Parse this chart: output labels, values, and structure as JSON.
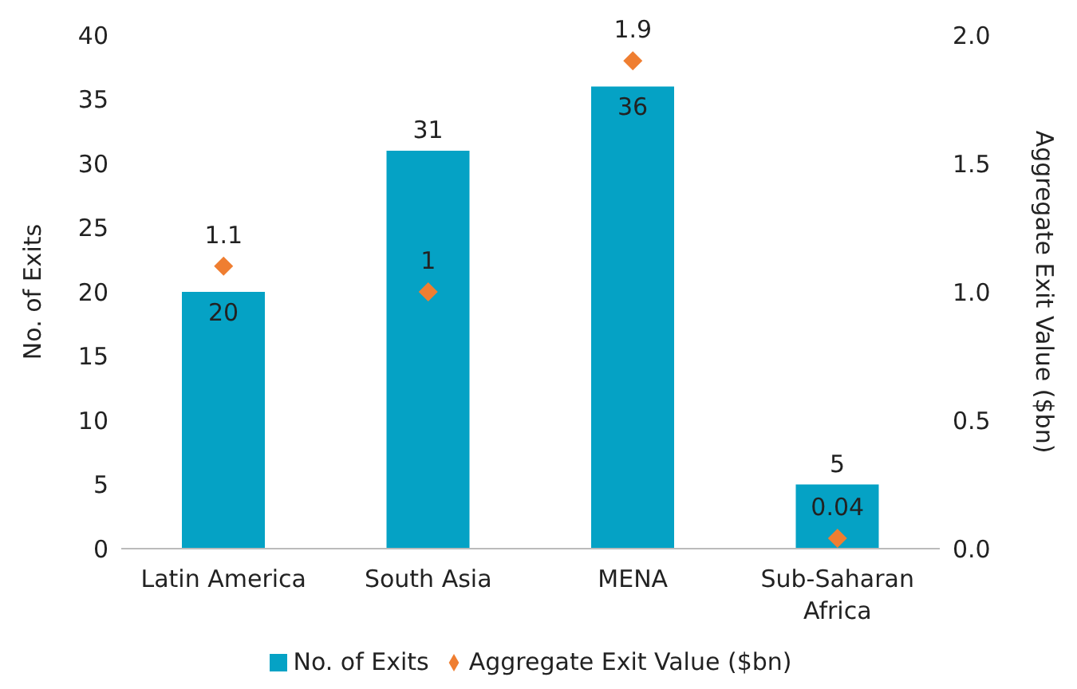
{
  "chart_data": {
    "type": "bar",
    "categories": [
      "Latin America",
      "South Asia",
      "MENA",
      "Sub-Saharan Africa"
    ],
    "series": [
      {
        "name": "No. of Exits",
        "color": "#05a2c5",
        "values": [
          20,
          31,
          36,
          5
        ]
      },
      {
        "name": "Aggregate Exit Value ($bn)",
        "type": "scatter",
        "axis": "y2",
        "color": "#ef7e31",
        "marker": "diamond",
        "values": [
          1.1,
          1,
          1.9,
          0.04
        ]
      }
    ],
    "ylabel": "No. of Exits",
    "y2label": "Aggregate Exit Value ($bn)",
    "ylim": [
      0,
      40
    ],
    "yticks": [
      0,
      5,
      10,
      15,
      20,
      25,
      30,
      35,
      40
    ],
    "y2lim": [
      0,
      2
    ],
    "y2ticks": [
      {
        "value": 0,
        "label": "0.0"
      },
      {
        "value": 0.5,
        "label": "0.5"
      },
      {
        "value": 1,
        "label": "1.0"
      },
      {
        "value": 1.5,
        "label": "1.5"
      },
      {
        "value": 2,
        "label": "2.0"
      }
    ],
    "data_labels": true,
    "grid": false,
    "legend": "bottom"
  }
}
